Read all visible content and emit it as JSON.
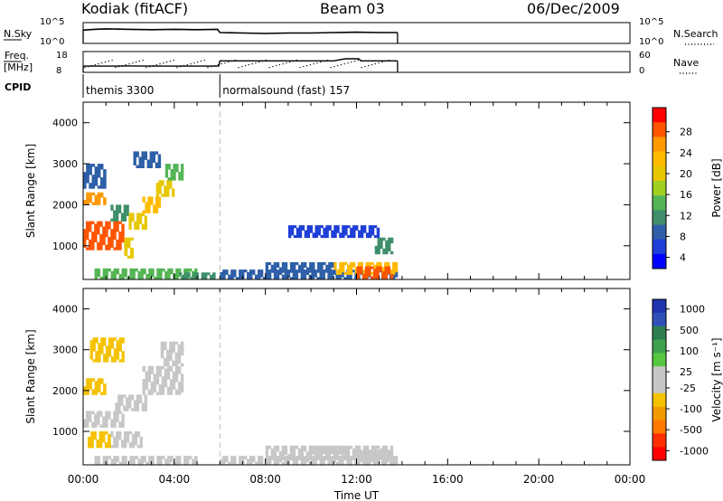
{
  "header": {
    "station": "Kodiak (fitACF)",
    "beam": "Beam 03",
    "date": "06/Dec/2009"
  },
  "chart_data": [
    {
      "type": "line",
      "panel": "noise",
      "left_label": "N.Sky",
      "right_label": "N.Search",
      "left_ticks": [
        "10^5",
        "10^0"
      ],
      "right_ticks": [
        "10^5",
        "10^0"
      ],
      "x": [
        0,
        0.5,
        1,
        2,
        3,
        4,
        5,
        5.9,
        6,
        7,
        8,
        9,
        10,
        11,
        12,
        13,
        13.8
      ],
      "values": [
        3.2,
        3.4,
        3.5,
        3.4,
        3.3,
        3.4,
        3.3,
        3.4,
        2.6,
        2.5,
        2.4,
        2.5,
        2.5,
        2.6,
        2.7,
        2.6,
        2.6
      ]
    },
    {
      "type": "line",
      "panel": "freq-nave",
      "left_label_1": "Freq.",
      "left_label_2": "[MHz]",
      "right_label": "Nave",
      "left_ticks": [
        "18",
        "8"
      ],
      "right_ticks": [
        "60",
        "0"
      ],
      "x": [
        0,
        1,
        2,
        3,
        4,
        5,
        5.95,
        6,
        7,
        8,
        9,
        10,
        11,
        11.5,
        12.1,
        12.2,
        13,
        13.8
      ],
      "values": [
        11,
        11,
        11.1,
        11,
        11,
        11,
        11,
        13.5,
        13.5,
        13.5,
        13.5,
        13.5,
        13.5,
        14.5,
        14.5,
        13.5,
        13.5,
        13.5
      ],
      "cpid_label": "CPID",
      "cpid_segments": [
        {
          "start": 0,
          "end": 6,
          "name": "themis 3300"
        },
        {
          "start": 6,
          "end": 13.8,
          "name": "normalsound (fast) 157"
        }
      ]
    },
    {
      "type": "heatmap",
      "panel": "power",
      "ylabel": "Slant Range [km]",
      "ylim": [
        180,
        4500
      ],
      "yticks": [
        1000,
        2000,
        3000,
        4000
      ],
      "colorbar_label": "Power [dB]",
      "colorbar_ticks": [
        "28",
        "24",
        "20",
        "16",
        "12",
        "8",
        "4"
      ],
      "colorbar_range": [
        0,
        32
      ],
      "palette": [
        "#ff0000",
        "#ff5500",
        "#ff9900",
        "#ffbb00",
        "#e6c700",
        "#9fd020",
        "#55b555",
        "#3f8f6a",
        "#2e5fa8",
        "#1f3fd8",
        "#0000ff"
      ],
      "cells": [
        {
          "x0": 0.0,
          "x1": 1.8,
          "y0": 900,
          "y1": 1600,
          "v": 28
        },
        {
          "x0": 0.0,
          "x1": 1.0,
          "y0": 2000,
          "y1": 2300,
          "v": 26
        },
        {
          "x0": 1.8,
          "x1": 2.2,
          "y0": 700,
          "y1": 1200,
          "v": 18
        },
        {
          "x0": 1.2,
          "x1": 2.0,
          "y0": 1600,
          "y1": 2000,
          "v": 10
        },
        {
          "x0": 2.0,
          "x1": 2.8,
          "y0": 1400,
          "y1": 1800,
          "v": 20
        },
        {
          "x0": 2.6,
          "x1": 3.4,
          "y0": 1800,
          "y1": 2200,
          "v": 22
        },
        {
          "x0": 3.2,
          "x1": 4.0,
          "y0": 2200,
          "y1": 2600,
          "v": 20
        },
        {
          "x0": 3.6,
          "x1": 4.4,
          "y0": 2600,
          "y1": 3000,
          "v": 12
        },
        {
          "x0": 0.0,
          "x1": 1.0,
          "y0": 2400,
          "y1": 3000,
          "v": 8
        },
        {
          "x0": 2.2,
          "x1": 3.4,
          "y0": 2900,
          "y1": 3300,
          "v": 6
        },
        {
          "x0": 0.5,
          "x1": 5.0,
          "y0": 180,
          "y1": 450,
          "v": 14
        },
        {
          "x0": 6.0,
          "x1": 13.8,
          "y0": 180,
          "y1": 420,
          "v": 6
        },
        {
          "x0": 8.0,
          "x1": 11.0,
          "y0": 350,
          "y1": 600,
          "v": 8
        },
        {
          "x0": 11.0,
          "x1": 13.8,
          "y0": 300,
          "y1": 600,
          "v": 22
        },
        {
          "x0": 12.0,
          "x1": 13.6,
          "y0": 200,
          "y1": 500,
          "v": 27
        },
        {
          "x0": 12.8,
          "x1": 13.6,
          "y0": 800,
          "y1": 1200,
          "v": 10
        },
        {
          "x0": 9.0,
          "x1": 13.0,
          "y0": 1200,
          "y1": 1500,
          "v": 4
        },
        {
          "x0": 4.2,
          "x1": 5.8,
          "y0": 180,
          "y1": 350,
          "v": 10
        }
      ]
    },
    {
      "type": "heatmap",
      "panel": "velocity",
      "ylabel": "Slant Range [km]",
      "ylim": [
        180,
        4500
      ],
      "yticks": [
        1000,
        2000,
        3000,
        4000
      ],
      "colorbar_label": "Velocity [m s⁻¹]",
      "colorbar_ticks": [
        "1000",
        "500",
        "100",
        "25",
        "-25",
        "-100",
        "-500",
        "-1000"
      ],
      "colorbar_range": [
        -1200,
        1200
      ],
      "palette": [
        "#2033b0",
        "#3050b8",
        "#2d7f4f",
        "#3fa050",
        "#55c840",
        "#c7c7c7",
        "#c7c7c7",
        "#f4c200",
        "#f39a00",
        "#ff7a00",
        "#ff3000",
        "#ff0000"
      ],
      "cells": [
        {
          "x0": 0.0,
          "x1": 1.8,
          "y0": 1100,
          "y1": 1500,
          "v": 0
        },
        {
          "x0": 0.0,
          "x1": 1.0,
          "y0": 1900,
          "y1": 2300,
          "v": -300
        },
        {
          "x0": 1.2,
          "x1": 2.6,
          "y0": 600,
          "y1": 1000,
          "v": -150
        },
        {
          "x0": 0.2,
          "x1": 1.2,
          "y0": 600,
          "y1": 1000,
          "v": -250
        },
        {
          "x0": 2.6,
          "x1": 4.4,
          "y0": 1900,
          "y1": 2600,
          "v": 0
        },
        {
          "x0": 3.4,
          "x1": 4.4,
          "y0": 2600,
          "y1": 3200,
          "v": 0
        },
        {
          "x0": 1.4,
          "x1": 2.8,
          "y0": 1500,
          "y1": 1900,
          "v": -120
        },
        {
          "x0": 0.3,
          "x1": 1.8,
          "y0": 2700,
          "y1": 3300,
          "v": -200
        },
        {
          "x0": 0.5,
          "x1": 5.0,
          "y0": 180,
          "y1": 400,
          "v": 60
        },
        {
          "x0": 6.0,
          "x1": 13.8,
          "y0": 180,
          "y1": 400,
          "v": 50
        },
        {
          "x0": 8.0,
          "x1": 13.6,
          "y0": 300,
          "y1": 650,
          "v": 0
        },
        {
          "x0": 10.0,
          "x1": 11.5,
          "y0": 450,
          "y1": 650,
          "v": 20
        },
        {
          "x0": 12.0,
          "x1": 13.6,
          "y0": 250,
          "y1": 550,
          "v": -60
        }
      ],
      "xlabel": "Time UT",
      "xlim": [
        0,
        24
      ],
      "xtick_labels": [
        "00:00",
        "04:00",
        "08:00",
        "12:00",
        "16:00",
        "20:00",
        "00:00"
      ],
      "xtick_values": [
        0,
        4,
        8,
        12,
        16,
        20,
        24
      ]
    }
  ]
}
